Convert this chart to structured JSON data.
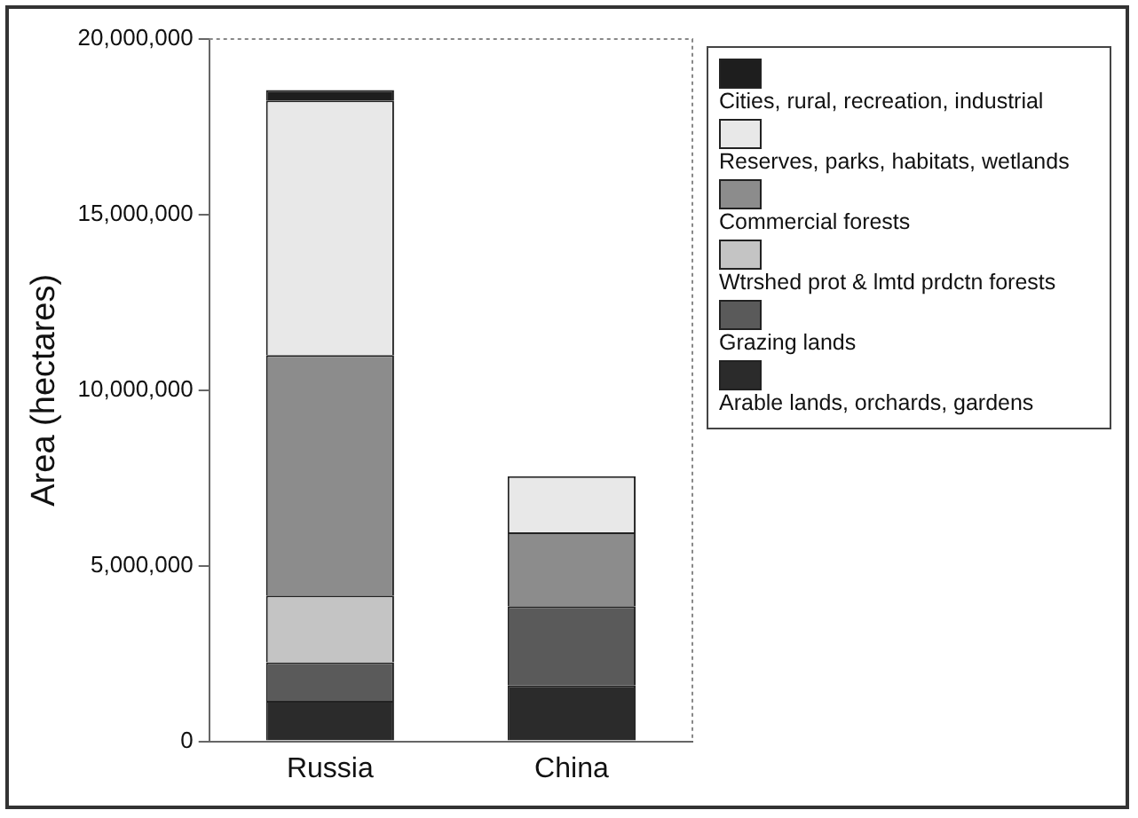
{
  "chart_data": {
    "type": "bar",
    "stacked": true,
    "ylabel": "Area (hectares)",
    "categories": [
      "Russia",
      "China"
    ],
    "ylim": [
      0,
      20000000
    ],
    "yticks": [
      {
        "value": 0,
        "label": "0"
      },
      {
        "value": 5000000,
        "label": "5,000,000"
      },
      {
        "value": 10000000,
        "label": "10,000,000"
      },
      {
        "value": 15000000,
        "label": "15,000,000"
      },
      {
        "value": 20000000,
        "label": "20,000,000"
      }
    ],
    "grid": false,
    "legend": "right",
    "series": [
      {
        "name": "Arable lands, orchards, gardens",
        "color": "#2b2b2b",
        "values": [
          1150000,
          1600000
        ]
      },
      {
        "name": "Grazing lands",
        "color": "#5a5a5a",
        "values": [
          1100000,
          2250000
        ]
      },
      {
        "name": "Wtrshed prot & lmtd prdctn forests",
        "color": "#c4c4c4",
        "values": [
          1900000,
          0
        ]
      },
      {
        "name": "Commercial forests",
        "color": "#8c8c8c",
        "values": [
          6850000,
          2100000
        ]
      },
      {
        "name": "Reserves, parks, habitats, wetlands",
        "color": "#e8e8e8",
        "values": [
          7250000,
          1600000
        ]
      },
      {
        "name": "Cities, rural, recreation, industrial",
        "color": "#1e1e1e",
        "values": [
          300000,
          0
        ]
      }
    ]
  }
}
